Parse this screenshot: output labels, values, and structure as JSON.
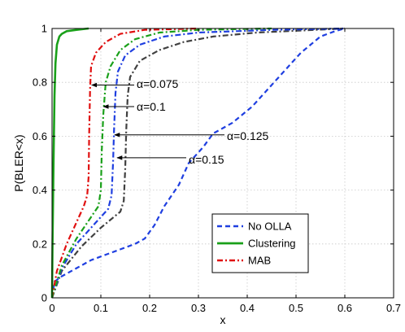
{
  "chart_data": {
    "type": "line",
    "title": "",
    "xlabel": "x",
    "ylabel": "P(BLER<x)",
    "xlim": [
      0,
      0.7
    ],
    "ylim": [
      0,
      1
    ],
    "xticks": [
      "0",
      "0.1",
      "0.2",
      "0.3",
      "0.4",
      "0.5",
      "0.6",
      "0.7"
    ],
    "yticks": [
      "0",
      "0.2",
      "0.4",
      "0.6",
      "0.8",
      "1"
    ],
    "grid": true,
    "legend_position": "lower-right",
    "legend": [
      {
        "name": "No OLLA",
        "color": "#1f3fe0",
        "style": "dashed"
      },
      {
        "name": "Clustering",
        "color": "#1aa01a",
        "style": "solid"
      },
      {
        "name": "MAB",
        "color": "#e01010",
        "style": "dashdot"
      }
    ],
    "series": [
      {
        "legend": "No OLLA",
        "color": "#1f3fe0",
        "style": "dashed",
        "points": [
          [
            0,
            0
          ],
          [
            0.005,
            0.06
          ],
          [
            0.02,
            0.08
          ],
          [
            0.05,
            0.11
          ],
          [
            0.08,
            0.14
          ],
          [
            0.11,
            0.16
          ],
          [
            0.14,
            0.18
          ],
          [
            0.17,
            0.2
          ],
          [
            0.19,
            0.22
          ],
          [
            0.21,
            0.27
          ],
          [
            0.23,
            0.34
          ],
          [
            0.26,
            0.42
          ],
          [
            0.28,
            0.5
          ],
          [
            0.31,
            0.56
          ],
          [
            0.33,
            0.61
          ],
          [
            0.35,
            0.63
          ],
          [
            0.37,
            0.65
          ],
          [
            0.39,
            0.68
          ],
          [
            0.41,
            0.71
          ],
          [
            0.43,
            0.75
          ],
          [
            0.45,
            0.79
          ],
          [
            0.47,
            0.83
          ],
          [
            0.49,
            0.87
          ],
          [
            0.51,
            0.91
          ],
          [
            0.53,
            0.94
          ],
          [
            0.55,
            0.97
          ],
          [
            0.58,
            0.99
          ],
          [
            0.6,
            1
          ]
        ]
      },
      {
        "legend": "Clustering",
        "color": "#1aa01a",
        "style": "solid",
        "points": [
          [
            0,
            0
          ],
          [
            0.001,
            0.2
          ],
          [
            0.003,
            0.5
          ],
          [
            0.005,
            0.75
          ],
          [
            0.007,
            0.87
          ],
          [
            0.01,
            0.94
          ],
          [
            0.015,
            0.97
          ],
          [
            0.02,
            0.98
          ],
          [
            0.03,
            0.99
          ],
          [
            0.05,
            0.995
          ],
          [
            0.075,
            1
          ]
        ]
      },
      {
        "legend": "MAB",
        "color": "#e01010",
        "style": "dashdot",
        "annotation": "α=0.075",
        "points": [
          [
            0,
            0
          ],
          [
            0.01,
            0.1
          ],
          [
            0.03,
            0.2
          ],
          [
            0.05,
            0.28
          ],
          [
            0.065,
            0.34
          ],
          [
            0.072,
            0.38
          ],
          [
            0.075,
            0.45
          ],
          [
            0.076,
            0.6
          ],
          [
            0.078,
            0.78
          ],
          [
            0.08,
            0.86
          ],
          [
            0.09,
            0.91
          ],
          [
            0.11,
            0.95
          ],
          [
            0.14,
            0.98
          ],
          [
            0.19,
            0.995
          ],
          [
            0.3,
            1
          ]
        ]
      },
      {
        "annotation": "α=0.1",
        "color": "#1aa01a",
        "style": "dashdot",
        "points": [
          [
            0,
            0
          ],
          [
            0.02,
            0.12
          ],
          [
            0.05,
            0.22
          ],
          [
            0.08,
            0.3
          ],
          [
            0.095,
            0.34
          ],
          [
            0.1,
            0.4
          ],
          [
            0.102,
            0.55
          ],
          [
            0.105,
            0.68
          ],
          [
            0.11,
            0.8
          ],
          [
            0.12,
            0.86
          ],
          [
            0.14,
            0.92
          ],
          [
            0.17,
            0.96
          ],
          [
            0.22,
            0.985
          ],
          [
            0.3,
            0.995
          ],
          [
            0.45,
            1
          ]
        ]
      },
      {
        "annotation": "α=0.125",
        "color": "#1f3fe0",
        "style": "dashdot",
        "points": [
          [
            0,
            0
          ],
          [
            0.02,
            0.11
          ],
          [
            0.05,
            0.2
          ],
          [
            0.09,
            0.28
          ],
          [
            0.115,
            0.33
          ],
          [
            0.122,
            0.38
          ],
          [
            0.125,
            0.5
          ],
          [
            0.127,
            0.62
          ],
          [
            0.13,
            0.76
          ],
          [
            0.135,
            0.84
          ],
          [
            0.15,
            0.9
          ],
          [
            0.18,
            0.94
          ],
          [
            0.23,
            0.97
          ],
          [
            0.3,
            0.985
          ],
          [
            0.45,
            0.995
          ],
          [
            0.6,
            1
          ]
        ]
      },
      {
        "annotation": "α=0.15",
        "color": "#404040",
        "style": "dashdot",
        "points": [
          [
            0,
            0
          ],
          [
            0.02,
            0.1
          ],
          [
            0.06,
            0.19
          ],
          [
            0.1,
            0.26
          ],
          [
            0.14,
            0.32
          ],
          [
            0.147,
            0.36
          ],
          [
            0.15,
            0.48
          ],
          [
            0.152,
            0.62
          ],
          [
            0.155,
            0.75
          ],
          [
            0.16,
            0.82
          ],
          [
            0.18,
            0.88
          ],
          [
            0.22,
            0.92
          ],
          [
            0.27,
            0.95
          ],
          [
            0.33,
            0.97
          ],
          [
            0.42,
            0.985
          ],
          [
            0.6,
            1
          ]
        ]
      }
    ],
    "annotations": [
      {
        "text": "α=0.075",
        "target": [
          0.078,
          0.79
        ]
      },
      {
        "text": "α=0.1",
        "target": [
          0.102,
          0.71
        ]
      },
      {
        "text": "α=0.125",
        "target": [
          0.125,
          0.605
        ]
      },
      {
        "text": "α=0.15",
        "target": [
          0.13,
          0.52
        ]
      }
    ]
  }
}
